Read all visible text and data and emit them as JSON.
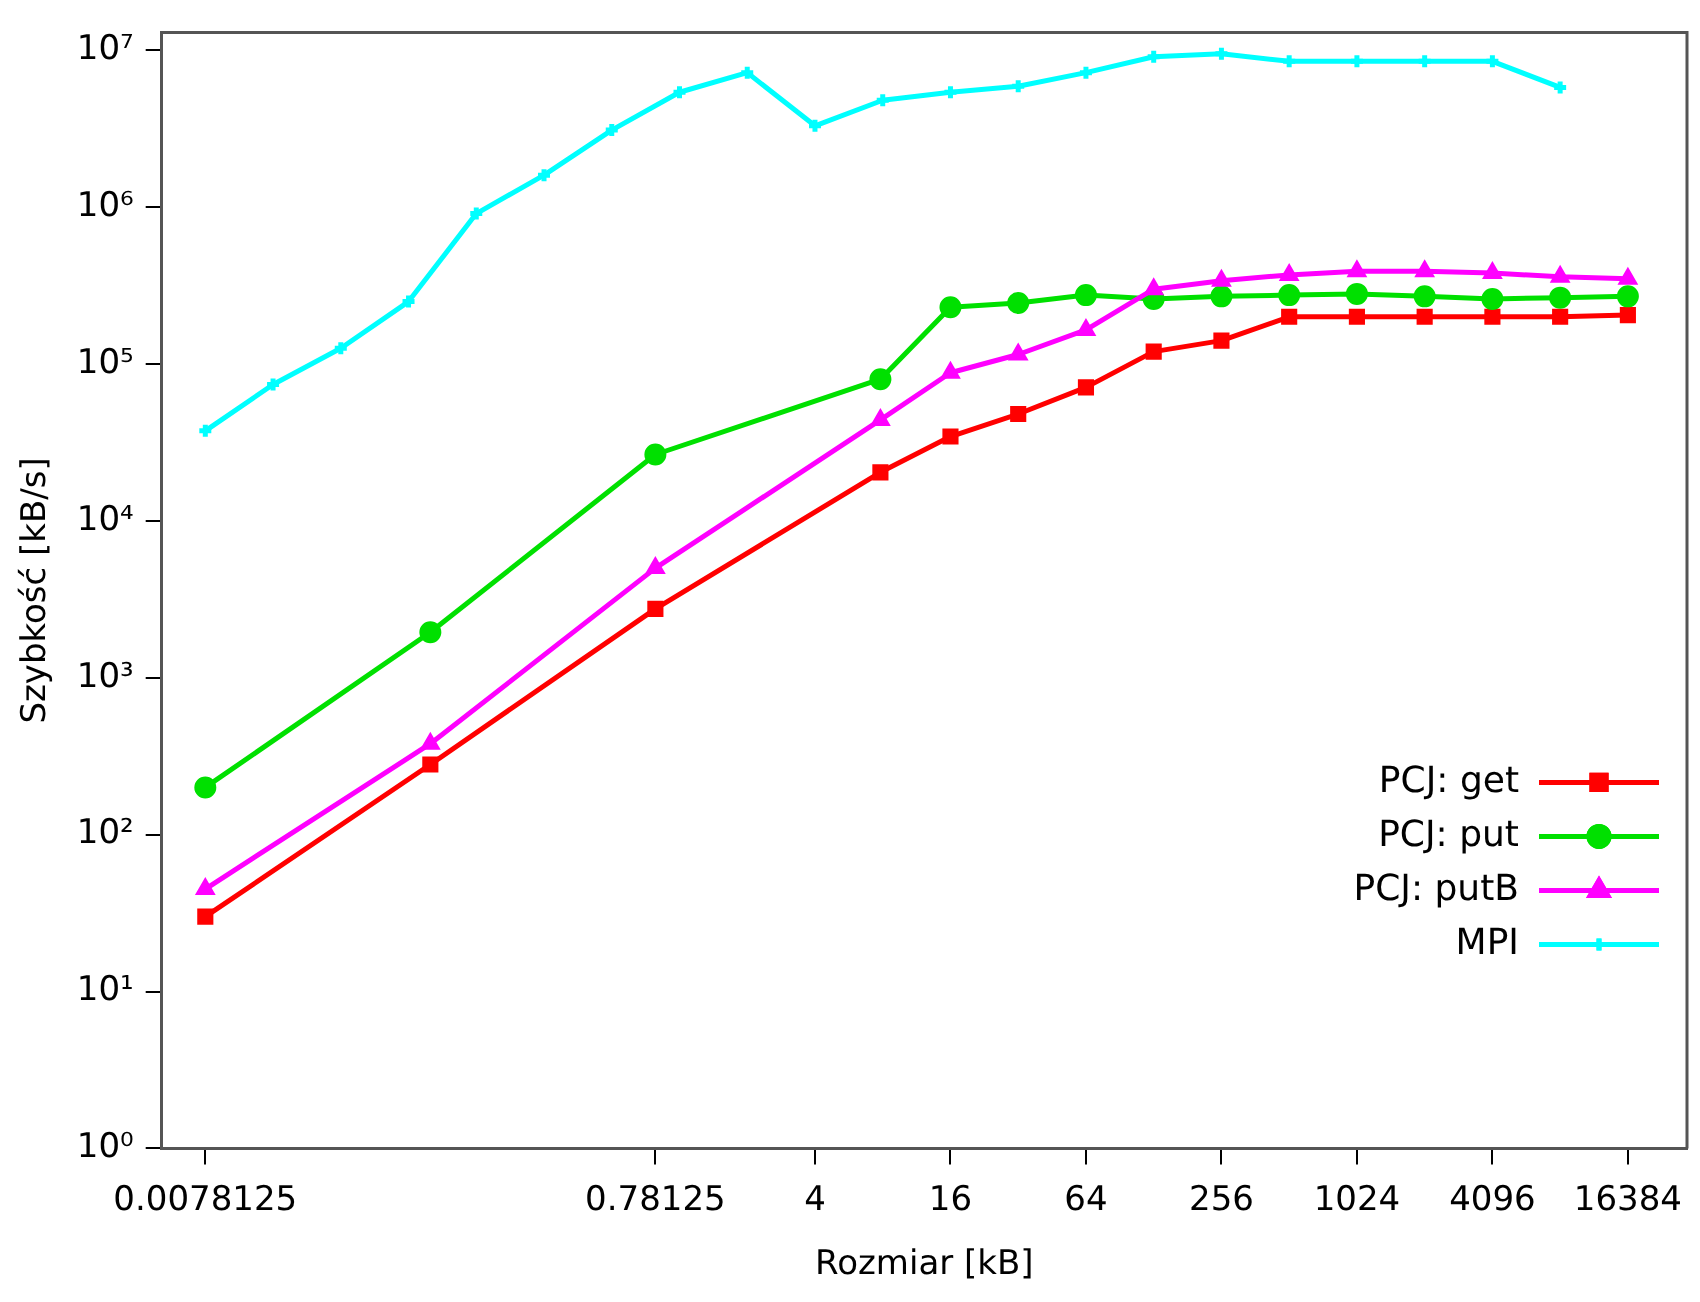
{
  "chart_data": {
    "type": "line",
    "xlabel": "Rozmiar [kB]",
    "ylabel": "Szybkość [kB/s]",
    "log": "xy",
    "grid": false,
    "legend": "bottom right",
    "xlim": [
      0.005,
      30000
    ],
    "xticks": [
      0.0078125,
      0.78125,
      4,
      16,
      64,
      256,
      1024,
      4096,
      16384
    ],
    "ylim": [
      1,
      13000000
    ],
    "yticks": [
      {
        "value": 1,
        "label": "10⁰"
      },
      {
        "value": 10,
        "label": "10¹"
      },
      {
        "value": 100,
        "label": "10²"
      },
      {
        "value": 1000,
        "label": "10³"
      },
      {
        "value": 10000,
        "label": "10⁴"
      },
      {
        "value": 100000,
        "label": "10⁵"
      },
      {
        "value": 1000000,
        "label": "10⁶"
      },
      {
        "value": 10000000,
        "label": "10⁷"
      }
    ],
    "series": [
      {
        "name": "PCJ: get",
        "color": "#ff0000",
        "marker": "square",
        "x": [
          0.0078125,
          0.078125,
          0.78125,
          7.8125,
          16,
          32,
          64,
          128,
          256,
          512,
          1024,
          2048,
          4096,
          8192,
          16384
        ],
        "values": [
          30,
          280,
          2750,
          20400,
          34500,
          48000,
          71000,
          120000,
          141000,
          200000,
          200000,
          200000,
          200000,
          200000,
          205000
        ]
      },
      {
        "name": "PCJ: put",
        "color": "#00e000",
        "marker": "circle",
        "x": [
          0.0078125,
          0.078125,
          0.78125,
          7.8125,
          16,
          32,
          64,
          128,
          256,
          512,
          1024,
          2048,
          4096,
          8192,
          16384
        ],
        "values": [
          200,
          1950,
          26500,
          80000,
          230000,
          245000,
          275000,
          260000,
          270000,
          275000,
          280000,
          270000,
          260000,
          265000,
          270000
        ]
      },
      {
        "name": "PCJ: putB",
        "color": "#ff00ff",
        "marker": "triangle",
        "x": [
          0.0078125,
          0.078125,
          0.78125,
          7.8125,
          16,
          32,
          64,
          128,
          256,
          512,
          1024,
          2048,
          4096,
          8192,
          16384
        ],
        "values": [
          45,
          380,
          5000,
          44000,
          88000,
          115000,
          165000,
          300000,
          340000,
          370000,
          390000,
          390000,
          380000,
          360000,
          350000
        ]
      },
      {
        "name": "MPI",
        "color": "#00ffff",
        "marker": "cross",
        "x": [
          0.0078125,
          0.015625,
          0.03125,
          0.0625,
          0.125,
          0.25,
          0.5,
          1,
          2,
          4,
          8,
          16,
          32,
          64,
          128,
          256,
          512,
          1024,
          2048,
          4096,
          8192
        ],
        "values": [
          37500,
          74000,
          126000,
          250000,
          910000,
          1600000,
          3100000,
          5400000,
          7200000,
          3300000,
          4800000,
          5400000,
          5900000,
          7200000,
          9100000,
          9500000,
          8500000,
          8500000,
          8500000,
          8500000,
          5800000
        ]
      }
    ]
  }
}
